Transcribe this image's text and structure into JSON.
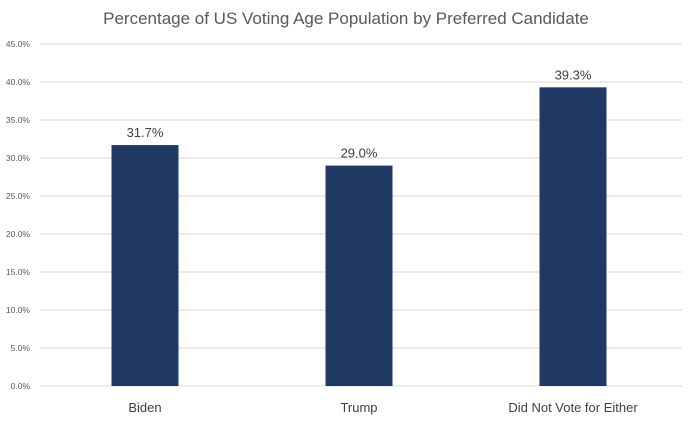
{
  "chart_data": {
    "type": "bar",
    "title": "Percentage of US Voting Age Population by Preferred Candidate",
    "categories": [
      "Biden",
      "Trump",
      "Did Not Vote for Either"
    ],
    "values": [
      31.7,
      29.0,
      39.3
    ],
    "data_labels": [
      "31.7%",
      "29.0%",
      "39.3%"
    ],
    "xlabel": "",
    "ylabel": "",
    "ylim": [
      0,
      45
    ],
    "y_ticks": [
      0,
      5,
      10,
      15,
      20,
      25,
      30,
      35,
      40,
      45
    ],
    "y_tick_labels": [
      "0.0%",
      "5.0%",
      "10.0%",
      "15.0%",
      "20.0%",
      "25.0%",
      "30.0%",
      "35.0%",
      "40.0%",
      "45.0%"
    ],
    "grid": true,
    "legend": "none",
    "bar_color": "#203864"
  }
}
